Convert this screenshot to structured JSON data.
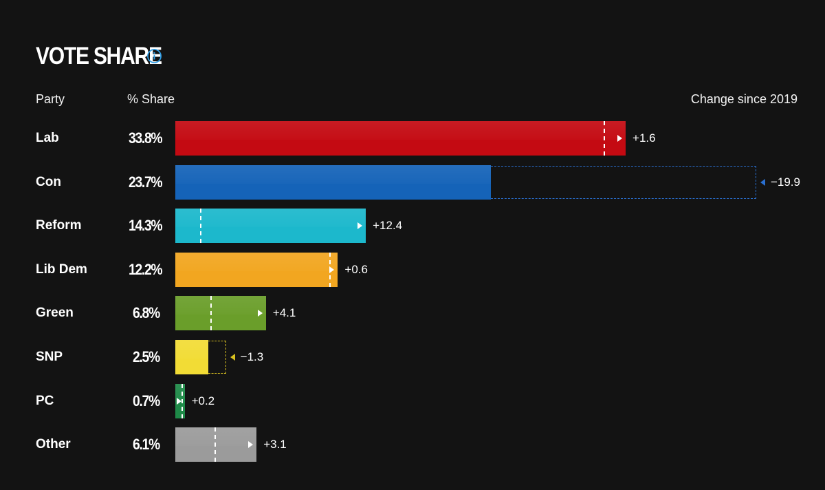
{
  "header": {
    "title": "VOTE SHARE",
    "info_icon": "info-circle-icon"
  },
  "table_headers": {
    "party": "Party",
    "share": "% Share",
    "change": "Change since 2019"
  },
  "colors": {
    "background": "#131313",
    "info_icon": "#2f9fe8"
  },
  "chart_data": {
    "type": "bar",
    "orientation": "horizontal",
    "title": "VOTE SHARE",
    "categories": [
      "Lab",
      "Con",
      "Reform",
      "Lib Dem",
      "Green",
      "SNP",
      "PC",
      "Other"
    ],
    "share_labels": [
      "33.8%",
      "23.7%",
      "14.3%",
      "12.2%",
      "6.8%",
      "2.5%",
      "0.7%",
      "6.1%"
    ],
    "values": [
      33.8,
      23.7,
      14.3,
      12.2,
      6.8,
      2.5,
      0.7,
      6.1
    ],
    "change_labels": [
      "+1.6",
      "−19.9",
      "+12.4",
      "+0.6",
      "+4.1",
      "−1.3",
      "+0.2",
      "+3.1"
    ],
    "change_since_2019": [
      1.6,
      -19.9,
      12.4,
      0.6,
      4.1,
      -1.3,
      0.2,
      3.1
    ],
    "colors": [
      "#c40a12",
      "#1563b8",
      "#1cb8cc",
      "#f2a620",
      "#6a9e2a",
      "#f2dc35",
      "#1e8a48",
      "#9b9b9b"
    ],
    "ghost_colors": [
      "#c40a12",
      "#2a6fd0",
      "#1cb8cc",
      "#f2a620",
      "#6a9e2a",
      "#d8c020",
      "#1e8a48",
      "#9b9b9b"
    ],
    "xlim": [
      0,
      43.6
    ]
  }
}
